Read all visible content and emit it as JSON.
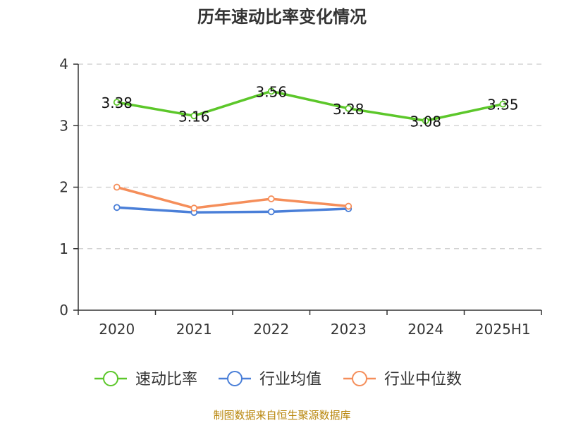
{
  "chart_data": {
    "type": "line",
    "title": "历年速动比率变化情况",
    "categories": [
      "2020",
      "2021",
      "2022",
      "2023",
      "2024",
      "2025H1"
    ],
    "ylim": [
      0,
      4
    ],
    "yticks": [
      0,
      1,
      2,
      3,
      4
    ],
    "grid": true,
    "legend_position": "bottom",
    "series": [
      {
        "name": "速动比率",
        "color": "#5cc72a",
        "values": [
          3.38,
          3.16,
          3.56,
          3.28,
          3.08,
          3.35
        ],
        "labels": [
          "3.38",
          "3.16",
          "3.56",
          "3.28",
          "3.08",
          "3.35"
        ]
      },
      {
        "name": "行业均值",
        "color": "#4a7fd8",
        "values": [
          1.67,
          1.59,
          1.6,
          1.65,
          null,
          null
        ]
      },
      {
        "name": "行业中位数",
        "color": "#f58e5a",
        "values": [
          2.0,
          1.66,
          1.81,
          1.69,
          null,
          null
        ]
      }
    ]
  },
  "source": "制图数据来自恒生聚源数据库"
}
